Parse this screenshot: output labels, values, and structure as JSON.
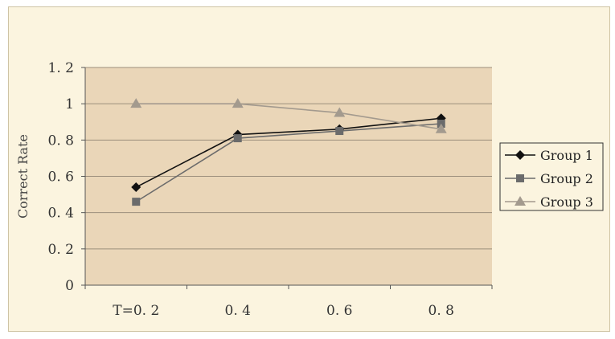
{
  "chart_data": {
    "type": "line",
    "categories": [
      "T=0. 2",
      "0. 4",
      "0. 6",
      "0. 8"
    ],
    "ylabel": "Correct Rate",
    "ylim": [
      0,
      1.2
    ],
    "yticks": [
      0,
      0.2,
      0.4,
      0.6,
      0.8,
      1,
      1.2
    ],
    "ytick_labels": [
      "0",
      "0. 2",
      "0. 4",
      "0. 6",
      "0. 8",
      "1",
      "1. 2"
    ],
    "grid": true,
    "legend_position": "right",
    "plot_background": "#ead6b8",
    "series": [
      {
        "name": "Group 1",
        "values": [
          0.54,
          0.83,
          0.86,
          0.92
        ],
        "color": "#111111",
        "marker": "diamond"
      },
      {
        "name": "Group 2",
        "values": [
          0.46,
          0.81,
          0.85,
          0.89
        ],
        "color": "#6b6b6b",
        "marker": "square"
      },
      {
        "name": "Group 3",
        "values": [
          1.0,
          1.0,
          0.95,
          0.86
        ],
        "color": "#a39a8e",
        "marker": "triangle"
      }
    ]
  }
}
